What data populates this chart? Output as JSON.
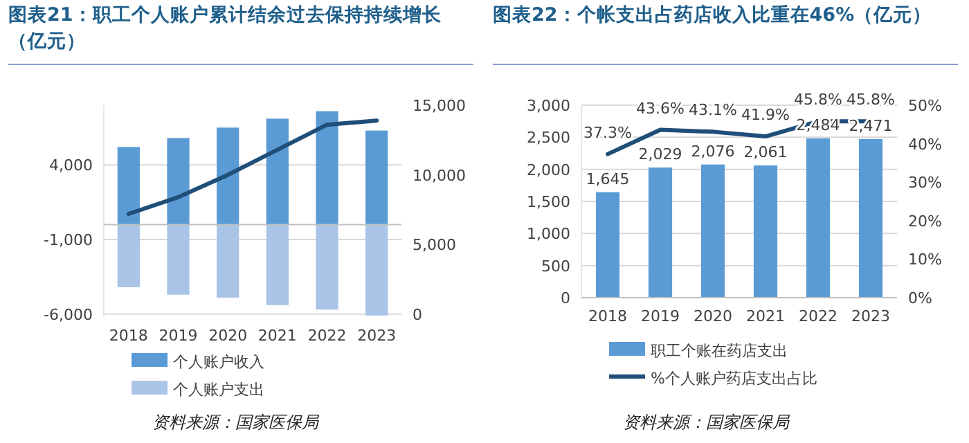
{
  "chart_data": [
    {
      "type": "bar",
      "title": "图表21：职工个人账户累计结余过去保持持续增长（亿元）",
      "annotations": [
        "资料来源：国家医保局"
      ],
      "categories": [
        "2018",
        "2019",
        "2020",
        "2021",
        "2022",
        "2023"
      ],
      "stacked": true,
      "series": [
        {
          "name": "个人账户收入",
          "color": "#5b9bd5",
          "values": [
            5200,
            5800,
            6500,
            7100,
            7600,
            6300
          ]
        },
        {
          "name": "个人账户支出",
          "color": "#a9c4e6",
          "values": [
            -4200,
            -4700,
            -4900,
            -5400,
            -5700,
            -6100
          ]
        },
        {
          "type": "line",
          "axis": "y2",
          "color": "#1f4e79",
          "values": [
            7200,
            8400,
            10000,
            11800,
            13600,
            13900
          ]
        }
      ],
      "ylim": [
        -6200,
        8000
      ],
      "yticks": [
        {
          "value": -6000,
          "label": "-6,000"
        },
        {
          "value": -1000,
          "label": "-1,000"
        },
        {
          "value": 4000,
          "label": "4,000"
        }
      ],
      "y2lim": [
        -200,
        15000
      ],
      "y2ticks": [
        0,
        {
          "value": 5000,
          "label": "5,000"
        },
        {
          "value": 10000,
          "label": "10,000"
        },
        {
          "value": 15000,
          "label": "15,000"
        }
      ],
      "grid": "y",
      "legend": "bottom"
    },
    {
      "type": "bar",
      "title": "图表22：个帐支出占药店收入比重在46%（亿元）",
      "annotations": [
        "资料来源：国家医保局"
      ],
      "categories": [
        "2018",
        "2019",
        "2020",
        "2021",
        "2022",
        "2023"
      ],
      "series": [
        {
          "name": "职工个账在药店支出",
          "color": "#5b9bd5",
          "values": [
            1645,
            2029,
            2076,
            2061,
            2484,
            2471
          ],
          "value_labels": [
            "1,645",
            "2,029",
            "2,076",
            "2,061",
            "2,484",
            "2,471"
          ]
        },
        {
          "name": "%个人账户药店支出占比",
          "type": "line",
          "axis": "y2",
          "color": "#1f4e79",
          "values": [
            37.3,
            43.6,
            43.1,
            41.9,
            45.8,
            45.8
          ],
          "value_labels": [
            "37.3%",
            "43.6%",
            "43.1%",
            "41.9%",
            "45.8%",
            "45.8%"
          ]
        }
      ],
      "ylim": [
        0,
        3000
      ],
      "yticks": [
        0,
        {
          "value": 500,
          "label": "500"
        },
        {
          "value": 1000,
          "label": "1,000"
        },
        {
          "value": 1500,
          "label": "1,500"
        },
        {
          "value": 2000,
          "label": "2,000"
        },
        {
          "value": 2500,
          "label": "2,500"
        },
        {
          "value": 3000,
          "label": "3,000"
        }
      ],
      "y2lim": [
        0,
        50
      ],
      "y2ticks": [
        {
          "value": 0,
          "label": "0%"
        },
        {
          "value": 10,
          "label": "10%"
        },
        {
          "value": 20,
          "label": "20%"
        },
        {
          "value": 30,
          "label": "30%"
        },
        {
          "value": 40,
          "label": "40%"
        },
        {
          "value": 50,
          "label": "50%"
        }
      ],
      "grid": "y",
      "legend": "bottom"
    }
  ]
}
